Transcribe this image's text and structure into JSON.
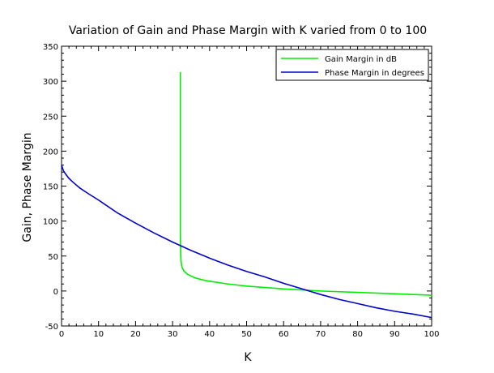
{
  "chart_data": {
    "type": "line",
    "title": "Variation of Gain and Phase Margin with K varied from 0 to 100",
    "xlabel": "K",
    "ylabel": "Gain, Phase Margin",
    "xlim": [
      0,
      100
    ],
    "ylim": [
      -50,
      350
    ],
    "xticks": [
      "0",
      "10",
      "20",
      "30",
      "40",
      "50",
      "60",
      "70",
      "80",
      "90",
      "100"
    ],
    "yticks": [
      "-50",
      "0",
      "50",
      "100",
      "150",
      "200",
      "250",
      "300",
      "350"
    ],
    "grid": false,
    "legend_position": "top-right",
    "series": [
      {
        "name": "Gain Margin in dB",
        "color": "#00ee00",
        "x": [
          32.1,
          32.1,
          32.1,
          32.2,
          32.3,
          32.5,
          33,
          34,
          36,
          38,
          40,
          45,
          50,
          55,
          60,
          65,
          70,
          75,
          80,
          85,
          90,
          95,
          100
        ],
        "y": [
          313,
          200,
          80,
          50,
          42,
          35,
          29,
          24,
          19,
          16,
          14,
          10,
          7,
          5,
          3,
          1.5,
          0,
          -1,
          -2,
          -3,
          -4,
          -5,
          -6
        ]
      },
      {
        "name": "Phase Margin in degrees",
        "color": "#0000cc",
        "x": [
          0,
          0.5,
          1,
          2,
          3,
          5,
          7,
          10,
          15,
          20,
          25,
          30,
          35,
          40,
          45,
          50,
          55,
          60,
          65,
          70,
          75,
          80,
          85,
          90,
          95,
          100
        ],
        "y": [
          180,
          172,
          168,
          161,
          156,
          147,
          140,
          130,
          112,
          97,
          83,
          70,
          58,
          47,
          37,
          28,
          20,
          11,
          3,
          -5,
          -12,
          -18,
          -24,
          -29,
          -33,
          -38
        ]
      }
    ]
  }
}
